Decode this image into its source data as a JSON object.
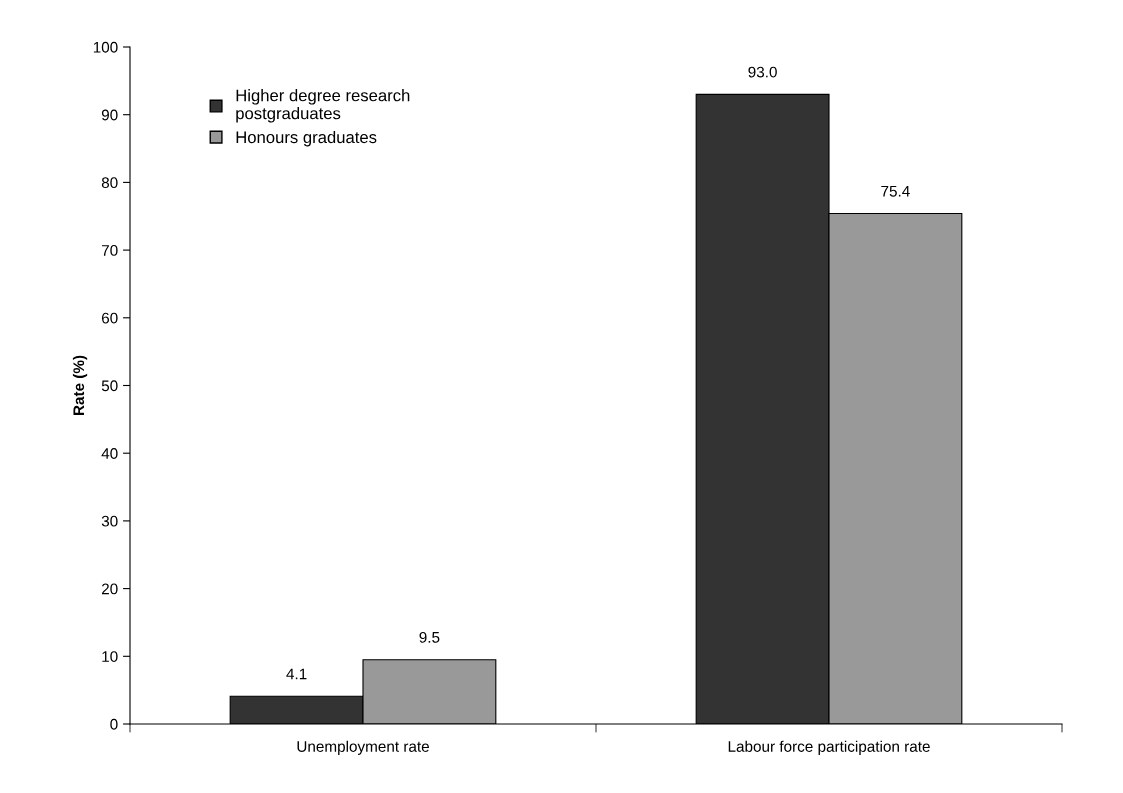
{
  "chart_data": {
    "type": "bar",
    "ylabel": "Rate (%)",
    "categories": [
      "Unemployment rate",
      "Labour force participation rate"
    ],
    "series": [
      {
        "name": "Higher degree research postgraduates",
        "color": "#333333",
        "values": [
          4.1,
          93.0
        ],
        "value_labels": [
          "4.1",
          "93.0"
        ]
      },
      {
        "name": "Honours graduates",
        "color": "#999999",
        "values": [
          9.5,
          75.4
        ],
        "value_labels": [
          "9.5",
          "75.4"
        ]
      }
    ],
    "ylim": [
      0,
      100
    ],
    "yticks": [
      0,
      10,
      20,
      30,
      40,
      50,
      60,
      70,
      80,
      90,
      100
    ],
    "grid": false,
    "legend": "top left"
  }
}
